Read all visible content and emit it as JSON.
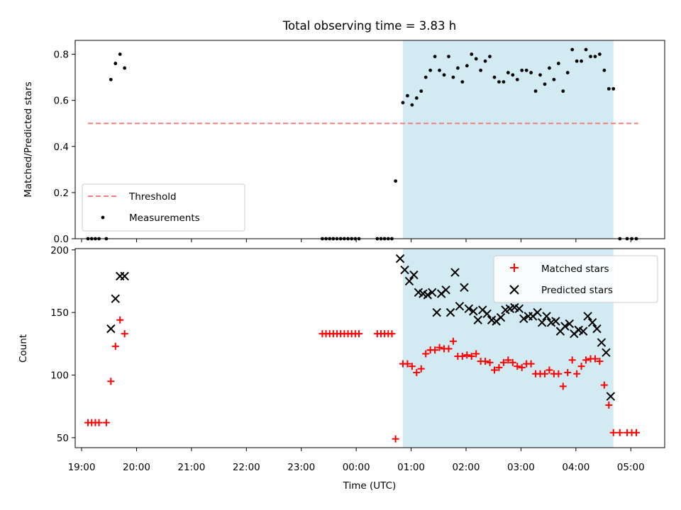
{
  "figure_title": "Total observing time = 3.83 h",
  "colors": {
    "span": "#add8e6",
    "threshold": "#f08080",
    "measurement": "#000000",
    "matched": "#ff0000",
    "predicted": "#000000"
  },
  "chart_data": [
    {
      "type": "scatter",
      "title": "Total observing time = 3.83 h",
      "xlabel": "",
      "ylabel": "Matched/Predicted stars",
      "xlim": [
        "18:53",
        "05:37"
      ],
      "ylim": [
        0,
        0.86
      ],
      "yticks": [
        "0.0",
        "0.2",
        "0.4",
        "0.6",
        "0.8"
      ],
      "shaded_span": [
        "00:51",
        "04:41"
      ],
      "threshold": {
        "name": "Threshold",
        "y": 0.5,
        "x": [
          "19:07",
          "05:08"
        ]
      },
      "legend": {
        "position": "lower-left",
        "entries": [
          "Threshold",
          "Measurements"
        ]
      },
      "series": [
        {
          "name": "Measurements",
          "marker": "dot",
          "points": [
            [
              "19:07",
              0
            ],
            [
              "19:11",
              0
            ],
            [
              "19:15",
              0
            ],
            [
              "19:19",
              0
            ],
            [
              "19:27",
              0
            ],
            [
              "19:32",
              0.69
            ],
            [
              "19:37",
              0.76
            ],
            [
              "19:42",
              0.8
            ],
            [
              "19:47",
              0.74
            ],
            [
              "23:23",
              0
            ],
            [
              "23:27",
              0
            ],
            [
              "23:31",
              0
            ],
            [
              "23:35",
              0
            ],
            [
              "23:39",
              0
            ],
            [
              "23:43",
              0
            ],
            [
              "23:47",
              0
            ],
            [
              "23:51",
              0
            ],
            [
              "23:55",
              0
            ],
            [
              "23:59",
              0
            ],
            [
              "00:03",
              0
            ],
            [
              "00:23",
              0
            ],
            [
              "00:27",
              0
            ],
            [
              "00:31",
              0
            ],
            [
              "00:35",
              0
            ],
            [
              "00:39",
              0
            ],
            [
              "00:43",
              0.25
            ],
            [
              "00:51",
              0.59
            ],
            [
              "00:56",
              0.62
            ],
            [
              "01:01",
              0.58
            ],
            [
              "01:06",
              0.61
            ],
            [
              "01:11",
              0.64
            ],
            [
              "01:16",
              0.7
            ],
            [
              "01:21",
              0.73
            ],
            [
              "01:26",
              0.79
            ],
            [
              "01:31",
              0.73
            ],
            [
              "01:36",
              0.71
            ],
            [
              "01:41",
              0.79
            ],
            [
              "01:46",
              0.7
            ],
            [
              "01:51",
              0.74
            ],
            [
              "01:56",
              0.68
            ],
            [
              "02:01",
              0.75
            ],
            [
              "02:06",
              0.8
            ],
            [
              "02:11",
              0.78
            ],
            [
              "02:16",
              0.73
            ],
            [
              "02:21",
              0.77
            ],
            [
              "02:26",
              0.79
            ],
            [
              "02:31",
              0.7
            ],
            [
              "02:36",
              0.68
            ],
            [
              "02:41",
              0.68
            ],
            [
              "02:46",
              0.72
            ],
            [
              "02:51",
              0.71
            ],
            [
              "02:56",
              0.69
            ],
            [
              "03:01",
              0.73
            ],
            [
              "03:06",
              0.73
            ],
            [
              "03:11",
              0.72
            ],
            [
              "03:16",
              0.64
            ],
            [
              "03:21",
              0.71
            ],
            [
              "03:26",
              0.67
            ],
            [
              "03:31",
              0.74
            ],
            [
              "03:36",
              0.69
            ],
            [
              "03:41",
              0.76
            ],
            [
              "03:46",
              0.64
            ],
            [
              "03:51",
              0.72
            ],
            [
              "03:56",
              0.82
            ],
            [
              "04:01",
              0.77
            ],
            [
              "04:06",
              0.77
            ],
            [
              "04:11",
              0.82
            ],
            [
              "04:16",
              0.79
            ],
            [
              "04:21",
              0.79
            ],
            [
              "04:26",
              0.8
            ],
            [
              "04:31",
              0.73
            ],
            [
              "04:36",
              0.65
            ],
            [
              "04:41",
              0.65
            ],
            [
              "04:48",
              0
            ],
            [
              "04:56",
              0
            ],
            [
              "05:01",
              0
            ],
            [
              "05:06",
              0
            ]
          ]
        }
      ]
    },
    {
      "type": "scatter",
      "xlabel": "Time (UTC)",
      "ylabel": "Count",
      "xlim": [
        "18:53",
        "05:37"
      ],
      "ylim": [
        42,
        201
      ],
      "yticks": [
        "50",
        "100",
        "150",
        "200"
      ],
      "xticks": [
        "19:00",
        "20:00",
        "21:00",
        "22:00",
        "23:00",
        "00:00",
        "01:00",
        "02:00",
        "03:00",
        "04:00",
        "05:00"
      ],
      "shaded_span": [
        "00:51",
        "04:41"
      ],
      "legend": {
        "position": "upper-right",
        "entries": [
          "Matched stars",
          "Predicted stars"
        ]
      },
      "series": [
        {
          "name": "Matched stars",
          "marker": "plus",
          "points": [
            [
              "19:07",
              62
            ],
            [
              "19:11",
              62
            ],
            [
              "19:15",
              62
            ],
            [
              "19:19",
              62
            ],
            [
              "19:27",
              62
            ],
            [
              "19:32",
              95
            ],
            [
              "19:37",
              123
            ],
            [
              "19:42",
              144
            ],
            [
              "19:47",
              133
            ],
            [
              "23:23",
              133
            ],
            [
              "23:27",
              133
            ],
            [
              "23:31",
              133
            ],
            [
              "23:35",
              133
            ],
            [
              "23:39",
              133
            ],
            [
              "23:43",
              133
            ],
            [
              "23:47",
              133
            ],
            [
              "23:51",
              133
            ],
            [
              "23:55",
              133
            ],
            [
              "23:59",
              133
            ],
            [
              "00:03",
              133
            ],
            [
              "00:23",
              133
            ],
            [
              "00:27",
              133
            ],
            [
              "00:31",
              133
            ],
            [
              "00:35",
              133
            ],
            [
              "00:39",
              133
            ],
            [
              "00:43",
              49
            ],
            [
              "00:51",
              109
            ],
            [
              "00:56",
              109
            ],
            [
              "01:01",
              107
            ],
            [
              "01:06",
              102
            ],
            [
              "01:11",
              105
            ],
            [
              "01:16",
              117
            ],
            [
              "01:21",
              120
            ],
            [
              "01:26",
              120
            ],
            [
              "01:31",
              122
            ],
            [
              "01:36",
              121
            ],
            [
              "01:41",
              121
            ],
            [
              "01:46",
              127
            ],
            [
              "01:51",
              115
            ],
            [
              "01:56",
              115
            ],
            [
              "02:01",
              116
            ],
            [
              "02:06",
              115
            ],
            [
              "02:11",
              117
            ],
            [
              "02:16",
              111
            ],
            [
              "02:21",
              111
            ],
            [
              "02:26",
              110
            ],
            [
              "02:31",
              104
            ],
            [
              "02:36",
              106
            ],
            [
              "02:41",
              110
            ],
            [
              "02:46",
              112
            ],
            [
              "02:51",
              110
            ],
            [
              "02:56",
              107
            ],
            [
              "03:01",
              106
            ],
            [
              "03:06",
              109
            ],
            [
              "03:11",
              109
            ],
            [
              "03:16",
              101
            ],
            [
              "03:21",
              101
            ],
            [
              "03:26",
              101
            ],
            [
              "03:31",
              104
            ],
            [
              "03:36",
              101
            ],
            [
              "03:41",
              101
            ],
            [
              "03:46",
              91
            ],
            [
              "03:51",
              102
            ],
            [
              "03:56",
              112
            ],
            [
              "04:01",
              101
            ],
            [
              "04:06",
              107
            ],
            [
              "04:11",
              112
            ],
            [
              "04:16",
              113
            ],
            [
              "04:21",
              113
            ],
            [
              "04:26",
              111
            ],
            [
              "04:31",
              92
            ],
            [
              "04:36",
              76
            ],
            [
              "04:41",
              54
            ],
            [
              "04:48",
              54
            ],
            [
              "04:56",
              54
            ],
            [
              "05:01",
              54
            ],
            [
              "05:06",
              54
            ]
          ]
        },
        {
          "name": "Predicted stars",
          "marker": "x",
          "points": [
            [
              "19:32",
              137
            ],
            [
              "19:37",
              161
            ],
            [
              "19:42",
              179
            ],
            [
              "19:47",
              179
            ],
            [
              "00:48",
              193
            ],
            [
              "00:53",
              184
            ],
            [
              "00:58",
              175
            ],
            [
              "01:03",
              180
            ],
            [
              "01:08",
              166
            ],
            [
              "01:13",
              165
            ],
            [
              "01:18",
              164
            ],
            [
              "01:23",
              166
            ],
            [
              "01:28",
              150
            ],
            [
              "01:33",
              165
            ],
            [
              "01:38",
              168
            ],
            [
              "01:43",
              150
            ],
            [
              "01:48",
              182
            ],
            [
              "01:53",
              155
            ],
            [
              "01:58",
              170
            ],
            [
              "02:03",
              153
            ],
            [
              "02:08",
              151
            ],
            [
              "02:13",
              144
            ],
            [
              "02:18",
              152
            ],
            [
              "02:23",
              149
            ],
            [
              "02:28",
              144
            ],
            [
              "02:33",
              143
            ],
            [
              "02:38",
              146
            ],
            [
              "02:43",
              152
            ],
            [
              "02:48",
              153
            ],
            [
              "02:53",
              154
            ],
            [
              "02:58",
              153
            ],
            [
              "03:03",
              145
            ],
            [
              "03:08",
              147
            ],
            [
              "03:13",
              147
            ],
            [
              "03:18",
              150
            ],
            [
              "03:23",
              142
            ],
            [
              "03:28",
              147
            ],
            [
              "03:33",
              142
            ],
            [
              "03:38",
              143
            ],
            [
              "03:43",
              135
            ],
            [
              "03:48",
              139
            ],
            [
              "03:53",
              141
            ],
            [
              "03:58",
              133
            ],
            [
              "04:03",
              136
            ],
            [
              "04:08",
              135
            ],
            [
              "04:13",
              147
            ],
            [
              "04:18",
              142
            ],
            [
              "04:23",
              137
            ],
            [
              "04:28",
              126
            ],
            [
              "04:33",
              118
            ],
            [
              "04:38",
              83
            ]
          ]
        }
      ]
    }
  ]
}
